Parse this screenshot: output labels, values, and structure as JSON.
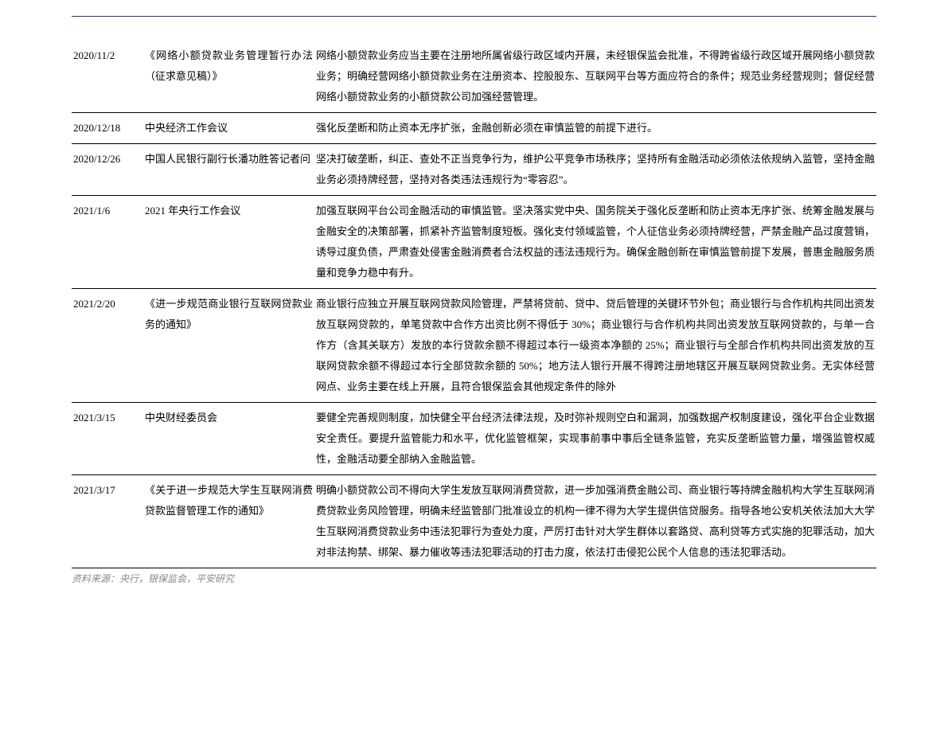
{
  "rows": [
    {
      "date": "2020/11/2",
      "title": "《网络小额贷款业务管理暂行办法（征求意见稿）》",
      "content": "网络小额贷款业务应当主要在注册地所属省级行政区域内开展，未经银保监会批准，不得跨省级行政区域开展网络小额贷款业务；明确经营网络小额贷款业务在注册资本、控股股东、互联网平台等方面应符合的条件；规范业务经营规则；督促经营网络小额贷款业务的小额贷款公司加强经营管理。"
    },
    {
      "date": "2020/12/18",
      "title": "中央经济工作会议",
      "content": "强化反垄断和防止资本无序扩张，金融创新必须在审慎监管的前提下进行。"
    },
    {
      "date": "2020/12/26",
      "title": "中国人民银行副行长潘功胜答记者问",
      "content": "坚决打破垄断，纠正、查处不正当竞争行为，维护公平竞争市场秩序；坚持所有金融活动必须依法依规纳入监管，坚持金融业务必须持牌经营，坚持对各类违法违规行为“零容忍”。"
    },
    {
      "date": "2021/1/6",
      "title": "2021 年央行工作会议",
      "content": "加强互联网平台公司金融活动的审慎监管。坚决落实党中央、国务院关于强化反垄断和防止资本无序扩张、统筹金融发展与金融安全的决策部署，抓紧补齐监管制度短板。强化支付领域监管，个人征信业务必须持牌经营，严禁金融产品过度营销，诱导过度负债，严肃查处侵害金融消费者合法权益的违法违规行为。确保金融创新在审慎监管前提下发展，普惠金融服务质量和竞争力稳中有升。"
    },
    {
      "date": "2021/2/20",
      "title": "《进一步规范商业银行互联网贷款业务的通知》",
      "content": "商业银行应独立开展互联网贷款风险管理，严禁将贷前、贷中、贷后管理的关键环节外包；商业银行与合作机构共同出资发放互联网贷款的，单笔贷款中合作方出资比例不得低于 30%；商业银行与合作机构共同出资发放互联网贷款的，与单一合作方（含其关联方）发放的本行贷款余额不得超过本行一级资本净额的 25%；商业银行与全部合作机构共同出资发放的互联网贷款余额不得超过本行全部贷款余额的 50%；地方法人银行开展不得跨注册地辖区开展互联网贷款业务。无实体经营网点、业务主要在线上开展，且符合银保监会其他规定条件的除外"
    },
    {
      "date": "2021/3/15",
      "title": "中央财经委员会",
      "content": "要健全完善规则制度，加快健全平台经济法律法规，及时弥补规则空白和漏洞，加强数据产权制度建设，强化平台企业数据安全责任。要提升监管能力和水平，优化监管框架，实现事前事中事后全链条监管，充实反垄断监管力量，增强监管权威性，金融活动要全部纳入金融监管。"
    },
    {
      "date": "2021/3/17",
      "title": "《关于进一步规范大学生互联网消费贷款监督管理工作的通知》",
      "content": "明确小额贷款公司不得向大学生发放互联网消费贷款，进一步加强消费金融公司、商业银行等持牌金融机构大学生互联网消费贷款业务风险管理，明确未经监管部门批准设立的机构一律不得为大学生提供信贷服务。指导各地公安机关依法加大大学生互联网消费贷款业务中违法犯罪行为查处力度，严厉打击针对大学生群体以套路贷、高利贷等方式实施的犯罪活动，加大对非法拘禁、绑架、暴力催收等违法犯罪活动的打击力度，依法打击侵犯公民个人信息的违法犯罪活动。"
    }
  ],
  "source": "资料来源：央行，银保监会，平安研究"
}
